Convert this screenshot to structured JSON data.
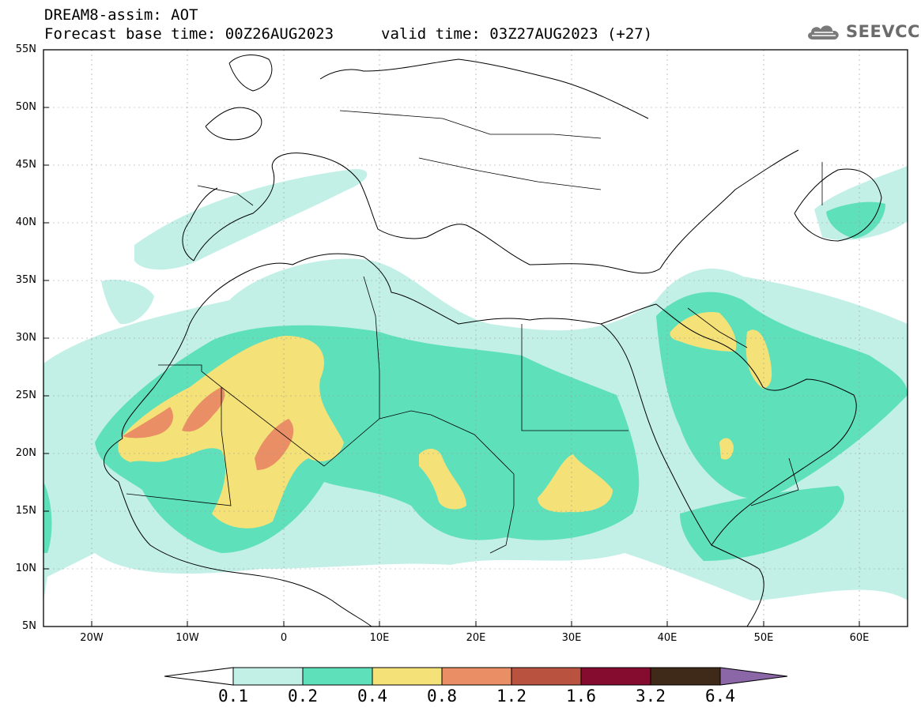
{
  "title": {
    "line1": "DREAM8-assim: AOT",
    "line2": "Forecast base time: 00Z26AUG2023",
    "valid": "valid time: 03Z27AUG2023 (+27)"
  },
  "logo": {
    "text": "SEEVCCC",
    "icon": "cloud-logo-icon"
  },
  "axes": {
    "lat_labels": [
      "55N",
      "50N",
      "45N",
      "40N",
      "35N",
      "30N",
      "25N",
      "20N",
      "15N",
      "10N",
      "5N"
    ],
    "lon_labels": [
      "20W",
      "10W",
      "0",
      "10E",
      "20E",
      "30E",
      "40E",
      "50E",
      "60E"
    ]
  },
  "colorbar": {
    "labels": [
      "0.1",
      "0.2",
      "0.4",
      "0.8",
      "1.2",
      "1.6",
      "3.2",
      "6.4"
    ],
    "colors": [
      "#ffffff",
      "#c2f0e7",
      "#5ee0bb",
      "#f4e278",
      "#ea8e65",
      "#b9523f",
      "#850c2f",
      "#3f2a19",
      "#8b67a8"
    ]
  }
}
